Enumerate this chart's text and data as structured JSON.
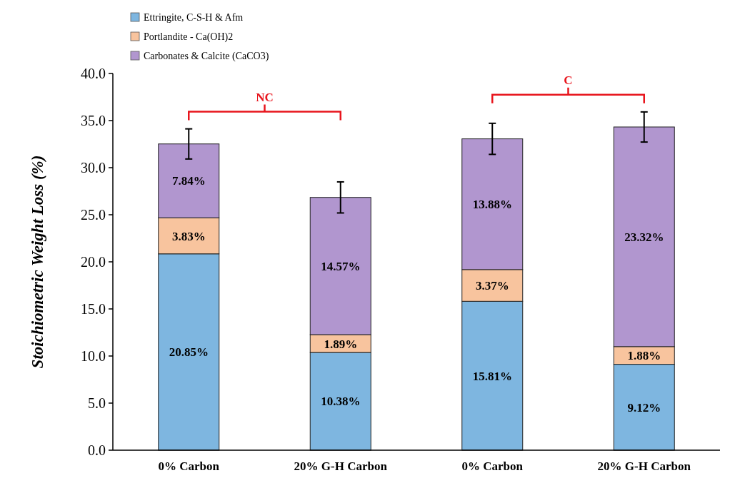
{
  "chart_data": {
    "type": "bar",
    "stacked": true,
    "ylabel": "Stoichiometric Weight Loss (%)",
    "categories": [
      "0% Carbon",
      "20% G-H Carbon",
      "0% Carbon",
      "20% G-H Carbon"
    ],
    "series": [
      {
        "name": "Ettringite, C-S-H & Afm",
        "color": "#7eb6e0",
        "values": [
          20.85,
          10.38,
          15.81,
          9.12
        ],
        "value_labels": [
          "20.85%",
          "10.38%",
          "15.81%",
          "9.12%"
        ]
      },
      {
        "name": "Portlandite - Ca(OH)2",
        "color": "#f8c49e",
        "values": [
          3.83,
          1.89,
          3.37,
          1.88
        ],
        "value_labels": [
          "3.83%",
          "1.89%",
          "3.37%",
          "1.88%"
        ]
      },
      {
        "name": "Carbonates & Calcite (CaCO3)",
        "color": "#b196cf",
        "values": [
          7.84,
          14.57,
          13.88,
          23.32
        ],
        "value_labels": [
          "7.84%",
          "14.57%",
          "13.88%",
          "23.32%"
        ],
        "errors": [
          1.6,
          1.65,
          1.65,
          1.6
        ]
      }
    ],
    "ylim": [
      0,
      40
    ],
    "yticks": [
      {
        "value": 0,
        "label": "0.0"
      },
      {
        "value": 5,
        "label": "5.0"
      },
      {
        "value": 10,
        "label": "10.0"
      },
      {
        "value": 15,
        "label": "15.0"
      },
      {
        "value": 20,
        "label": "20.0"
      },
      {
        "value": 25,
        "label": "25.0"
      },
      {
        "value": 30,
        "label": "30.0"
      },
      {
        "value": 35,
        "label": "35.0"
      },
      {
        "value": 40,
        "label": "40.0"
      }
    ],
    "grid": false,
    "legend": "top left",
    "annotations": [
      "NC",
      "C"
    ]
  }
}
